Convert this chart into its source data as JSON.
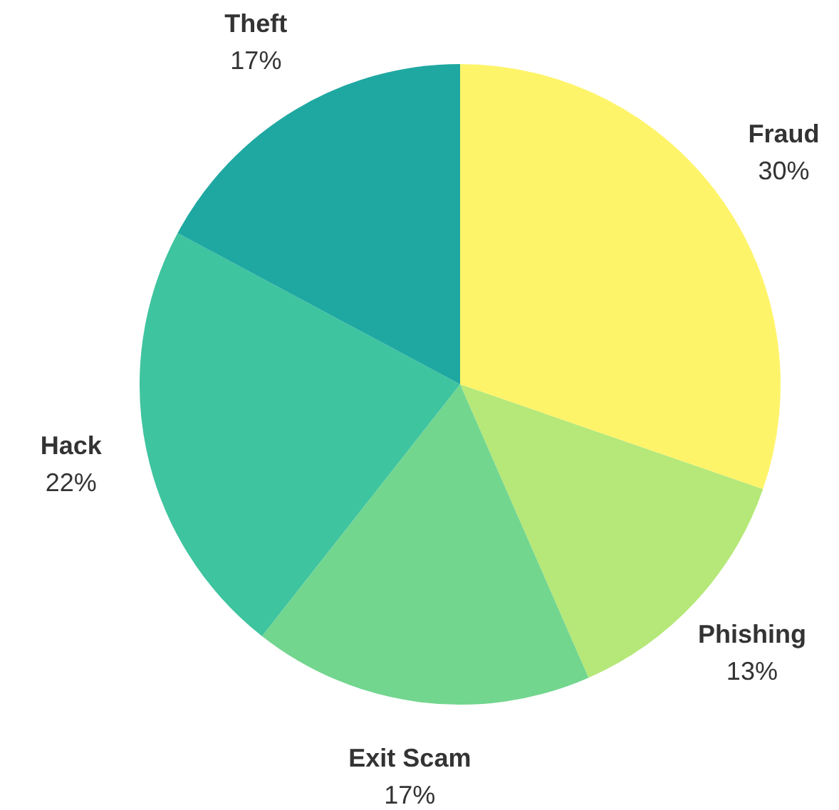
{
  "chart_data": {
    "type": "pie",
    "categories": [
      "Fraud",
      "Phishing",
      "Exit Scam",
      "Hack",
      "Theft"
    ],
    "values": [
      30,
      13,
      17,
      22,
      17
    ],
    "value_labels": [
      "30%",
      "13%",
      "17%",
      "22%",
      "17%"
    ],
    "colors": [
      "#fef46a",
      "#b5e878",
      "#72d68e",
      "#3ec49f",
      "#1fa8a2"
    ]
  }
}
